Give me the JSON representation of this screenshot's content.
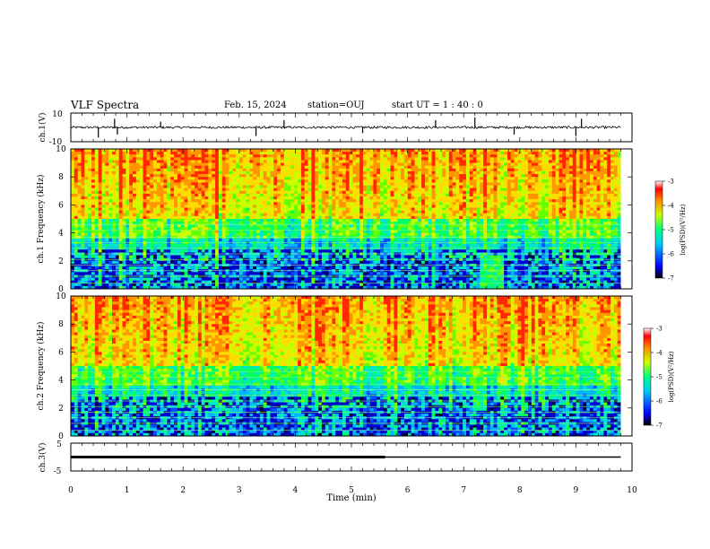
{
  "header": {
    "title": "VLF Spectra",
    "date": "Feb. 15, 2024",
    "station": "station=OUJ",
    "start": "start  UT =   1 : 40 : 0"
  },
  "chart_data": [
    {
      "type": "line",
      "name": "ch1-waveform",
      "ylabel": "ch.1(V)",
      "ylim": [
        -10,
        10
      ],
      "yticks": [
        "10",
        "-10"
      ],
      "xlim": [
        0,
        10
      ],
      "baseline": 0,
      "spikes": [
        {
          "x": 0.49,
          "y": -7
        },
        {
          "x": 0.78,
          "y": 6
        },
        {
          "x": 0.83,
          "y": -5
        },
        {
          "x": 1.6,
          "y": 4
        },
        {
          "x": 3.3,
          "y": -6
        },
        {
          "x": 3.8,
          "y": 5
        },
        {
          "x": 5.2,
          "y": -4
        },
        {
          "x": 6.5,
          "y": 5
        },
        {
          "x": 7.2,
          "y": 7
        },
        {
          "x": 7.9,
          "y": -5
        },
        {
          "x": 9.0,
          "y": -6
        },
        {
          "x": 9.1,
          "y": 6
        }
      ]
    },
    {
      "type": "heatmap",
      "name": "ch1-spectrogram",
      "ylabel": "ch.1  Frequency (kHz)",
      "xlim": [
        0,
        10
      ],
      "ylim": [
        0,
        10
      ],
      "yticks": [
        "0",
        "2",
        "4",
        "6",
        "8",
        "10"
      ],
      "colorbar": {
        "label": "log(PSD)(V²/Hz)",
        "range": [
          -7,
          -3
        ],
        "ticks": [
          "-3",
          "-4",
          "-5",
          "-6",
          "-7"
        ]
      }
    },
    {
      "type": "heatmap",
      "name": "ch2-spectrogram",
      "ylabel": "ch.2  Frequency (kHz)",
      "xlim": [
        0,
        10
      ],
      "ylim": [
        0,
        10
      ],
      "yticks": [
        "0",
        "2",
        "4",
        "6",
        "8",
        "10"
      ],
      "colorbar": {
        "label": "log(PSD)(V²/Hz)",
        "range": [
          -7,
          -3
        ],
        "ticks": [
          "-3",
          "-4",
          "-5",
          "-6",
          "-7"
        ]
      }
    },
    {
      "type": "line",
      "name": "ch3-signal",
      "ylabel": "ch.3(V)",
      "ylim": [
        -5,
        5
      ],
      "yticks": [
        "5",
        "0",
        "-5"
      ],
      "xlim": [
        0,
        10
      ],
      "thick_until": 5.6,
      "level": 0
    }
  ],
  "xaxis": {
    "label": "Time  (min)",
    "ticks": [
      "0",
      "1",
      "2",
      "3",
      "4",
      "5",
      "6",
      "7",
      "8",
      "9",
      "10"
    ]
  },
  "colors": {
    "stops": [
      "#00005a",
      "#0000ff",
      "#00c8ff",
      "#00ff80",
      "#c8ff00",
      "#ffb400",
      "#ff0000",
      "#ffffff"
    ]
  }
}
